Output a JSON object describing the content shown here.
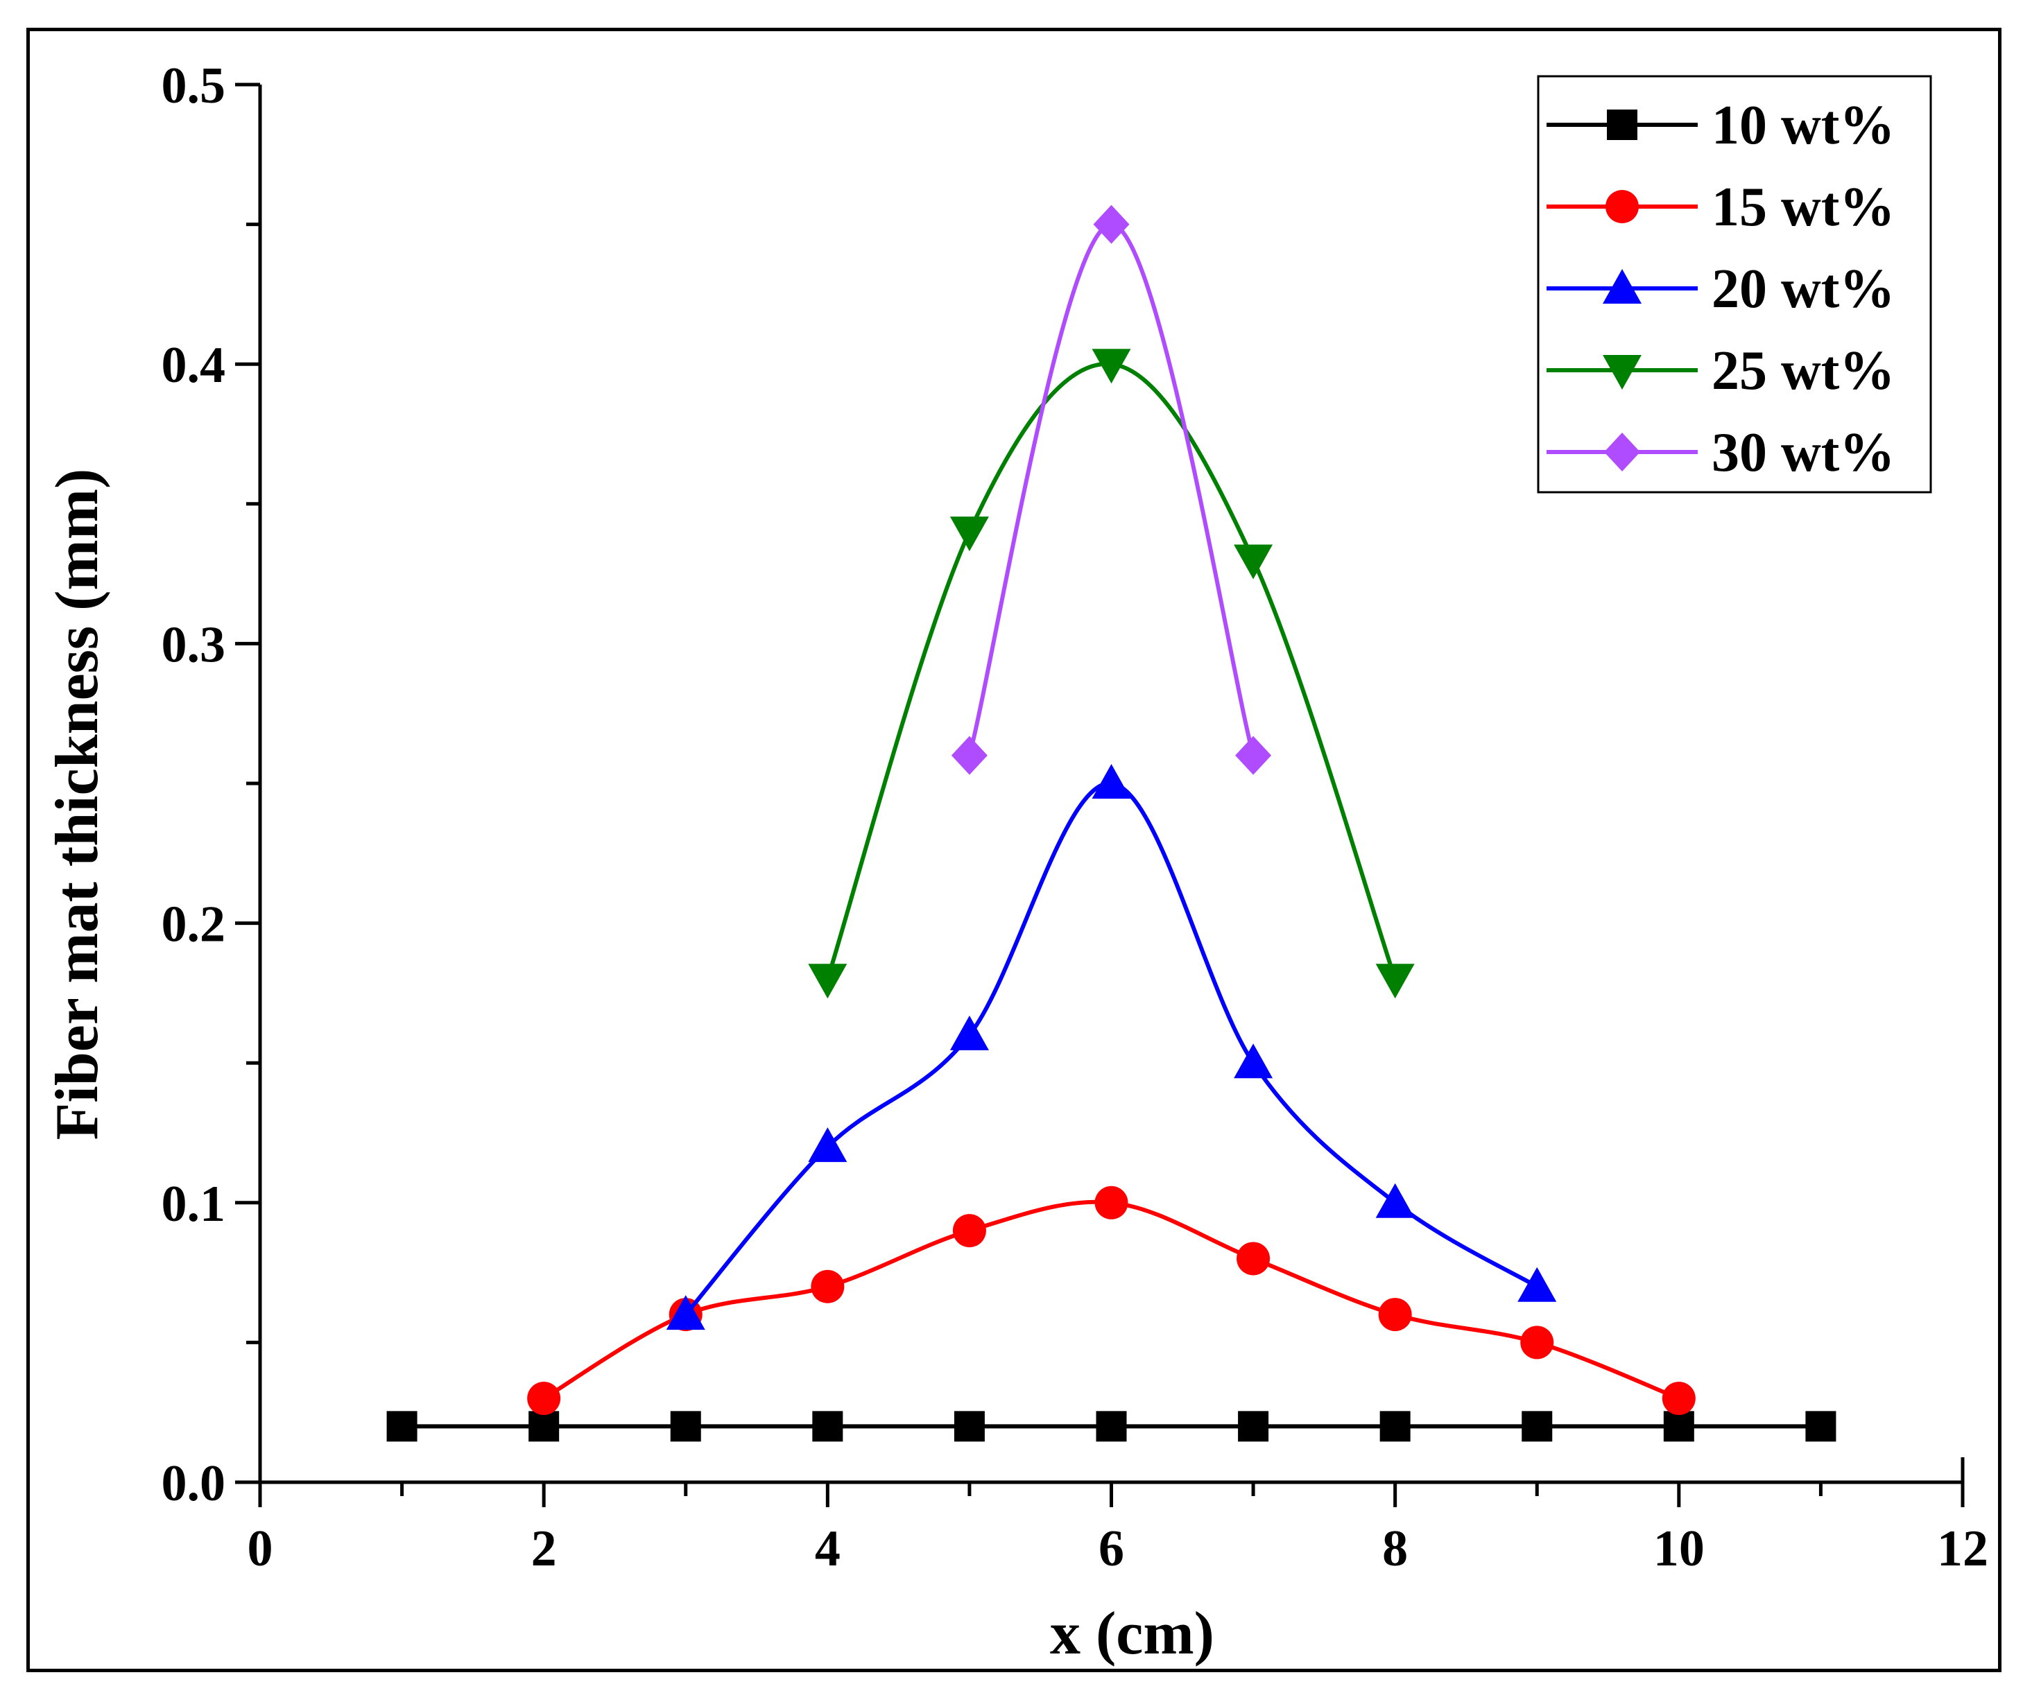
{
  "chart_data": {
    "type": "line",
    "xlabel": "x (cm)",
    "ylabel": "Fiber mat thickness (mm)",
    "xlim": [
      0,
      12
    ],
    "ylim": [
      0,
      0.5
    ],
    "xticks": [
      "0",
      "2",
      "4",
      "6",
      "8",
      "10",
      "12"
    ],
    "yticks": [
      "0.0",
      "0.1",
      "0.2",
      "0.3",
      "0.4",
      "0.5"
    ],
    "legend_position": "top-right",
    "series": [
      {
        "name": "10 wt%",
        "color": "#000000",
        "marker": "square",
        "x": [
          1,
          2,
          3,
          4,
          5,
          6,
          7,
          8,
          9,
          10,
          11
        ],
        "y": [
          0.02,
          0.02,
          0.02,
          0.02,
          0.02,
          0.02,
          0.02,
          0.02,
          0.02,
          0.02,
          0.02
        ]
      },
      {
        "name": "15 wt%",
        "color": "#ff0000",
        "marker": "circle",
        "x": [
          2,
          3,
          4,
          5,
          6,
          7,
          8,
          9,
          10
        ],
        "y": [
          0.03,
          0.06,
          0.07,
          0.09,
          0.1,
          0.08,
          0.06,
          0.05,
          0.03
        ]
      },
      {
        "name": "20 wt%",
        "color": "#0000ff",
        "marker": "triangle-up",
        "x": [
          3,
          4,
          5,
          6,
          7,
          8,
          9
        ],
        "y": [
          0.06,
          0.12,
          0.16,
          0.25,
          0.15,
          0.1,
          0.07
        ]
      },
      {
        "name": "25 wt%",
        "color": "#008000",
        "marker": "triangle-down",
        "x": [
          4,
          5,
          6,
          7,
          8
        ],
        "y": [
          0.18,
          0.34,
          0.4,
          0.33,
          0.18
        ]
      },
      {
        "name": "30 wt%",
        "color": "#b04cff",
        "marker": "diamond",
        "x": [
          5,
          6,
          7
        ],
        "y": [
          0.26,
          0.45,
          0.26
        ]
      }
    ]
  }
}
